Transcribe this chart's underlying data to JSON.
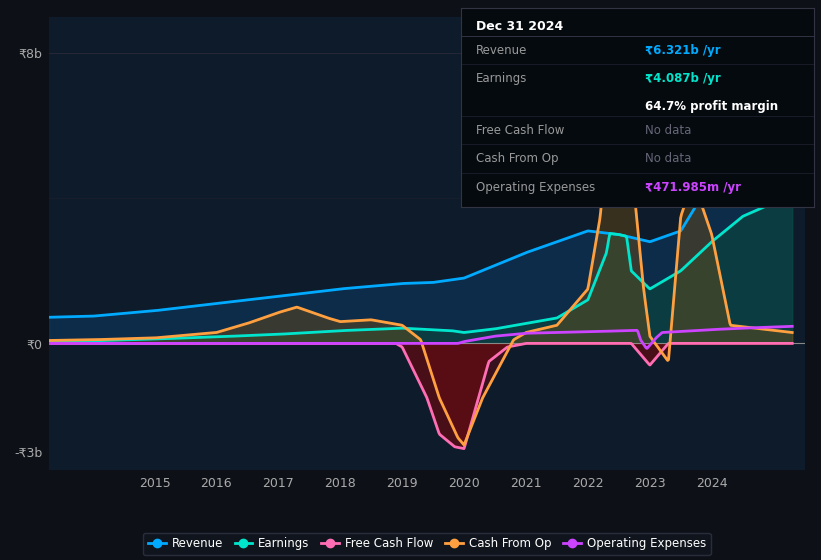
{
  "bg_color": "#0d1117",
  "plot_bg_color": "#0d1b2a",
  "ylim": [
    -3500000000.0,
    9000000000.0
  ],
  "ytick_labels": [
    "-₹3b",
    "₹0",
    "₹8b"
  ],
  "ytick_vals": [
    -3000000000.0,
    0,
    8000000000.0
  ],
  "xtick_labels": [
    "2015",
    "2016",
    "2017",
    "2018",
    "2019",
    "2020",
    "2021",
    "2022",
    "2023",
    "2024"
  ],
  "xtick_vals": [
    2015,
    2016,
    2017,
    2018,
    2019,
    2020,
    2021,
    2022,
    2023,
    2024
  ],
  "legend_items": [
    {
      "label": "Revenue",
      "color": "#00aaff"
    },
    {
      "label": "Earnings",
      "color": "#00e5cc"
    },
    {
      "label": "Free Cash Flow",
      "color": "#ff6eb4"
    },
    {
      "label": "Cash From Op",
      "color": "#ffa040"
    },
    {
      "label": "Operating Expenses",
      "color": "#cc44ff"
    }
  ],
  "tooltip": {
    "date": "Dec 31 2024",
    "revenue_label": "Revenue",
    "revenue_val": "₹6.321b /yr",
    "earnings_label": "Earnings",
    "earnings_val": "₹4.087b /yr",
    "profit_margin": "64.7% profit margin",
    "fcf_label": "Free Cash Flow",
    "fcf_val": "No data",
    "cashop_label": "Cash From Op",
    "cashop_val": "No data",
    "opex_label": "Operating Expenses",
    "opex_val": "₹471.985m /yr"
  },
  "revenue_color": "#00aaff",
  "earnings_color": "#00e5cc",
  "fcf_color": "#ff6eb4",
  "cashop_color": "#ffa040",
  "opex_color": "#cc44ff"
}
